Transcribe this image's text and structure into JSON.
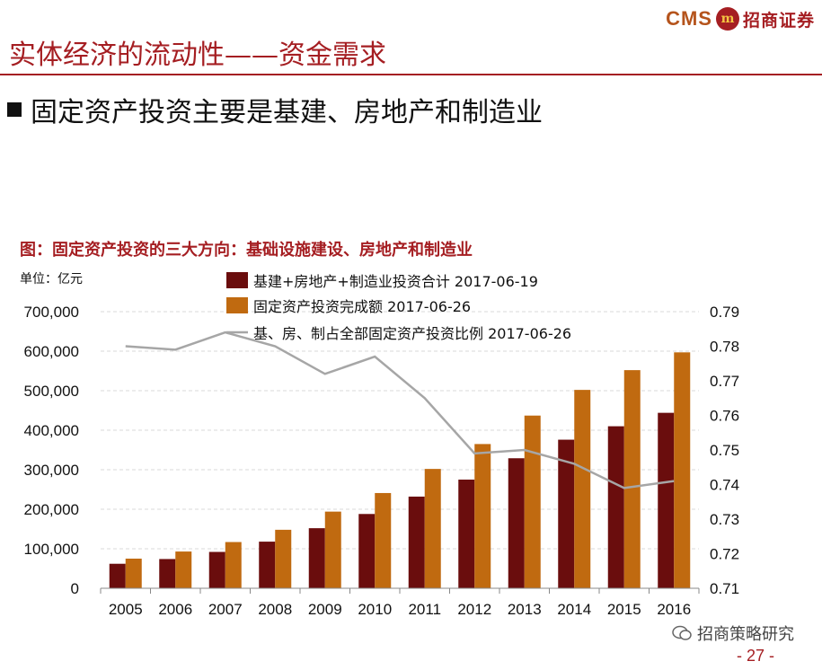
{
  "logo": {
    "latin": "CMS",
    "mark": "m",
    "chinese": "招商证券"
  },
  "slide_title": "实体经济的流动性——资金需求",
  "subheading": "固定资产投资主要是基建、房地产和制造业",
  "figure_title": "图：固定资产投资的三大方向：基础设施建设、房地产和制造业",
  "unit_label": "单位：亿元",
  "footer": {
    "brand": "招商策略研究",
    "page": "- 27 -"
  },
  "colors": {
    "accent": "#a51e22",
    "series1": "#6a0d0d",
    "series2": "#c06a10",
    "series3": "#a6a6a6"
  },
  "chart_data": {
    "type": "bar",
    "categories": [
      "2005",
      "2006",
      "2007",
      "2008",
      "2009",
      "2010",
      "2011",
      "2012",
      "2013",
      "2014",
      "2015",
      "2016"
    ],
    "series": [
      {
        "name": "基建+房地产+制造业投资合计 2017-06-19",
        "kind": "bar",
        "axis": "left",
        "values": [
          62000,
          74000,
          92000,
          118000,
          152000,
          188000,
          232000,
          275000,
          329000,
          376000,
          410000,
          444000
        ]
      },
      {
        "name": "固定资产投资完成额 2017-06-26",
        "kind": "bar",
        "axis": "left",
        "values": [
          75000,
          93000,
          117000,
          148000,
          194000,
          241000,
          302000,
          365000,
          437000,
          502000,
          552000,
          597000
        ]
      },
      {
        "name": "基、房、制占全部固定资产投资比例 2017-06-26",
        "kind": "line",
        "axis": "right",
        "values": [
          0.78,
          0.779,
          0.784,
          0.78,
          0.772,
          0.777,
          0.765,
          0.749,
          0.75,
          0.746,
          0.739,
          0.741
        ]
      }
    ],
    "y_left": {
      "min": 0,
      "max": 700000,
      "ticks": [
        "0",
        "100,000",
        "200,000",
        "300,000",
        "400,000",
        "500,000",
        "600,000",
        "700,000"
      ]
    },
    "y_right": {
      "min": 0.71,
      "max": 0.79,
      "ticks": [
        "0.71",
        "0.72",
        "0.73",
        "0.74",
        "0.75",
        "0.76",
        "0.77",
        "0.78",
        "0.79"
      ]
    },
    "grid": true,
    "legend_position": "top"
  }
}
